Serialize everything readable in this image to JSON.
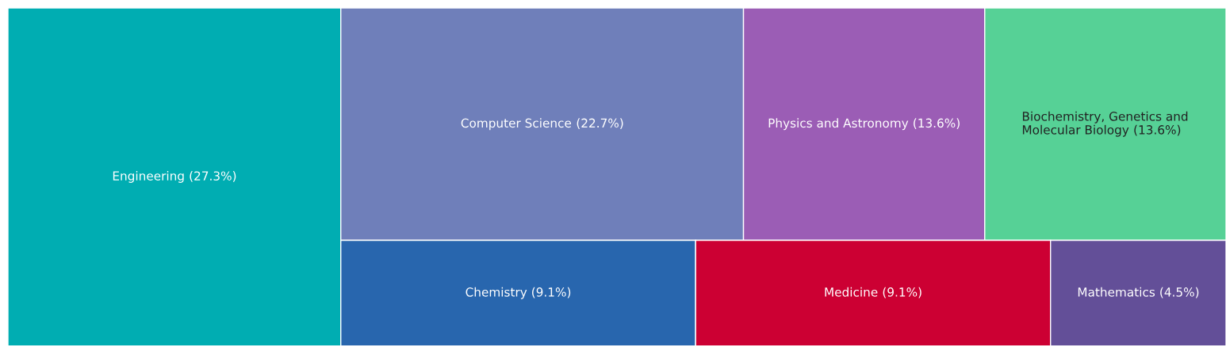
{
  "chart_data": {
    "type": "other",
    "categories": [
      "Engineering",
      "Computer Science",
      "Physics and Astronomy",
      "Biochemistry, Genetics and Molecular Biology",
      "Chemistry",
      "Medicine",
      "Mathematics"
    ],
    "values": [
      27.3,
      22.7,
      13.6,
      13.6,
      9.1,
      9.1,
      4.5
    ],
    "value_labels": [
      "(27.3%)",
      "(22.7%)",
      "(13.6%)",
      "(13.6%)",
      "(9.1%)",
      "(9.1%)",
      "(4.5%)"
    ],
    "colors": [
      "#00adb2",
      "#6f7fba",
      "#9b5db5",
      "#56d196",
      "#2866ae",
      "#cc0033",
      "#634f98"
    ]
  }
}
